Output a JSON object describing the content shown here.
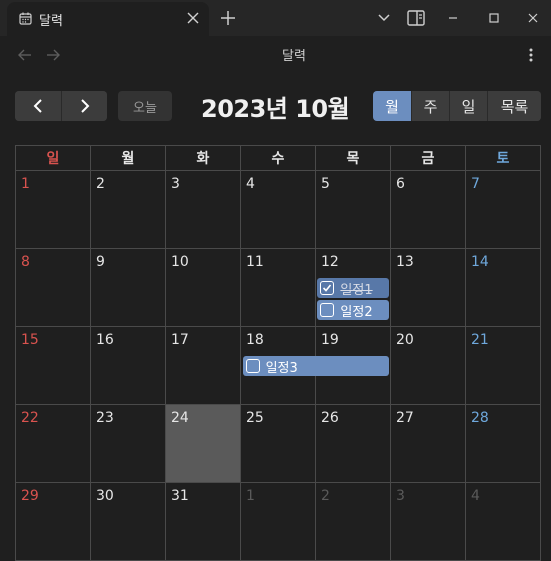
{
  "tab": {
    "title": "달력"
  },
  "nav": {
    "title": "달력"
  },
  "toolbar": {
    "today_label": "오늘",
    "title": "2023년 10월",
    "views": [
      "월",
      "주",
      "일",
      "목록"
    ],
    "active_view": "월"
  },
  "weekdays": [
    "일",
    "월",
    "화",
    "수",
    "목",
    "금",
    "토"
  ],
  "weeks": [
    [
      {
        "n": "1"
      },
      {
        "n": "2"
      },
      {
        "n": "3"
      },
      {
        "n": "4"
      },
      {
        "n": "5"
      },
      {
        "n": "6"
      },
      {
        "n": "7"
      }
    ],
    [
      {
        "n": "8"
      },
      {
        "n": "9"
      },
      {
        "n": "10"
      },
      {
        "n": "11"
      },
      {
        "n": "12"
      },
      {
        "n": "13"
      },
      {
        "n": "14"
      }
    ],
    [
      {
        "n": "15"
      },
      {
        "n": "16"
      },
      {
        "n": "17"
      },
      {
        "n": "18"
      },
      {
        "n": "19"
      },
      {
        "n": "20"
      },
      {
        "n": "21"
      }
    ],
    [
      {
        "n": "22"
      },
      {
        "n": "23"
      },
      {
        "n": "24",
        "today": true
      },
      {
        "n": "25"
      },
      {
        "n": "26"
      },
      {
        "n": "27"
      },
      {
        "n": "28"
      }
    ],
    [
      {
        "n": "29"
      },
      {
        "n": "30"
      },
      {
        "n": "31"
      },
      {
        "n": "1",
        "other": true
      },
      {
        "n": "2",
        "other": true
      },
      {
        "n": "3",
        "other": true
      },
      {
        "n": "4",
        "other": true
      }
    ]
  ],
  "events": [
    {
      "title": "일정1",
      "week": 1,
      "start_day": 4,
      "span": 1,
      "lane": 0,
      "done": true
    },
    {
      "title": "일정2",
      "week": 1,
      "start_day": 4,
      "span": 1,
      "lane": 1,
      "done": false
    },
    {
      "title": "일정3",
      "week": 2,
      "start_day": 3,
      "span": 2,
      "lane": 0,
      "done": false
    }
  ],
  "colors": {
    "accent": "#6c8ebf",
    "sunday": "#d9534f",
    "saturday": "#6fa8dc",
    "today_bg": "#5a5a5a"
  },
  "icons": {
    "tab": "calendar-icon",
    "close": "close-icon",
    "new_tab": "plus-icon",
    "back": "arrow-left-icon",
    "forward": "arrow-right-icon",
    "more": "more-vertical-icon",
    "prev": "chevron-left-icon",
    "next": "chevron-right-icon"
  }
}
